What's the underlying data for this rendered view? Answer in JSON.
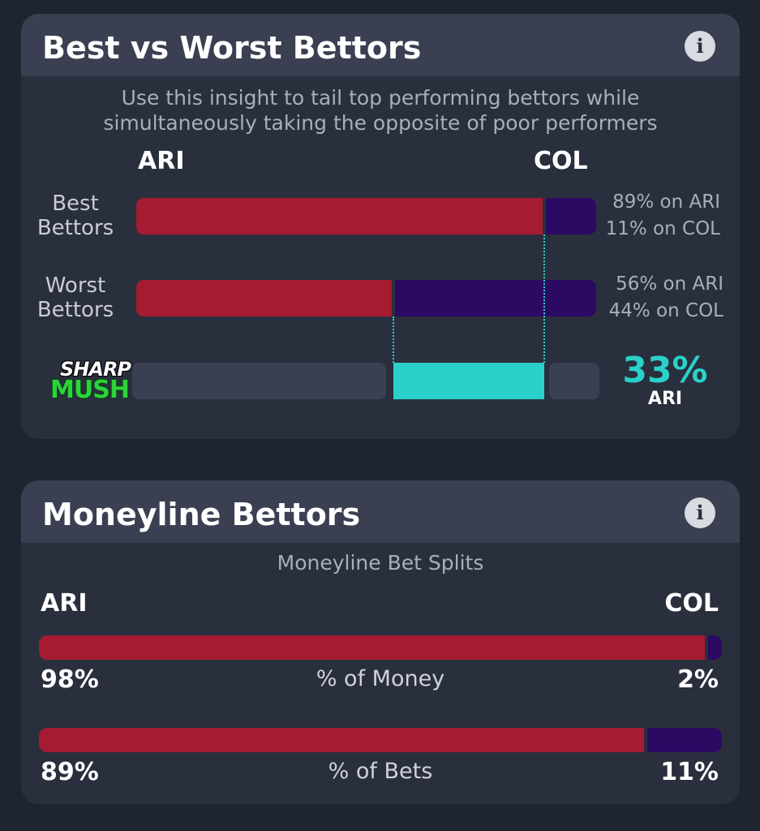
{
  "best_worst": {
    "title": "Best vs Worst Bettors",
    "info_icon": "info-icon",
    "subtitle_line1": "Use this insight to tail top performing bettors while",
    "subtitle_line2": "simultaneously taking the opposite of poor performers",
    "team_left": "ARI",
    "team_right": "COL",
    "rows": [
      {
        "label_line1": "Best",
        "label_line2": "Bettors",
        "ari_pct": 89,
        "col_pct": 11,
        "ari_text": "89% on ARI",
        "col_text": "11% on COL"
      },
      {
        "label_line1": "Worst",
        "label_line2": "Bettors",
        "ari_pct": 56,
        "col_pct": 44,
        "ari_text": "56% on ARI",
        "col_text": "44% on COL"
      }
    ],
    "sharp_mush": {
      "logo_top": "SHARP",
      "logo_bottom": "MUSH",
      "value_pct": 33,
      "value_text": "33%",
      "team": "ARI"
    },
    "colors": {
      "ari": "#a51b31",
      "col": "#2c0a63",
      "sharp": "#2ad1c8"
    }
  },
  "moneyline": {
    "title": "Moneyline Bettors",
    "info_icon": "info-icon",
    "subtitle": "Moneyline Bet Splits",
    "team_left": "ARI",
    "team_right": "COL",
    "splits": [
      {
        "label": "% of Money",
        "ari_pct": 98,
        "col_pct": 2,
        "ari_text": "98%",
        "col_text": "2%"
      },
      {
        "label": "% of Bets",
        "ari_pct": 89,
        "col_pct": 11,
        "ari_text": "89%",
        "col_text": "11%"
      }
    ]
  }
}
